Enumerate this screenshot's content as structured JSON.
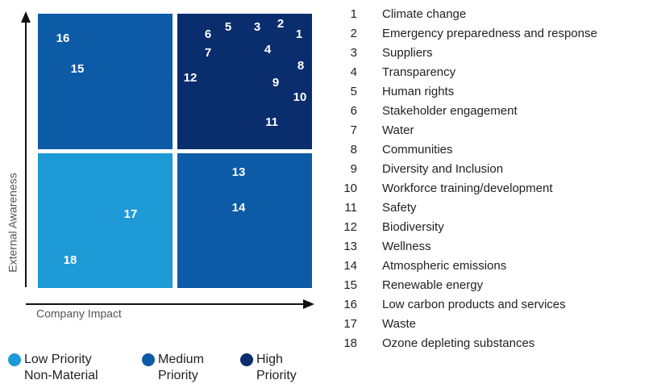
{
  "axes": {
    "y_label": "External Awareness",
    "x_label": "Company Impact"
  },
  "legend": [
    {
      "line1": "Low Priority",
      "line2": "Non-Material",
      "color": "#1e9ad6"
    },
    {
      "line1": "Medium",
      "line2": "Priority",
      "color": "#0d5aa7"
    },
    {
      "line1": "High",
      "line2": "Priority",
      "color": "#0a2d6e"
    }
  ],
  "items": [
    {
      "number": 1,
      "label": "Climate change"
    },
    {
      "number": 2,
      "label": "Emergency preparedness and response"
    },
    {
      "number": 3,
      "label": "Suppliers"
    },
    {
      "number": 4,
      "label": "Transparency"
    },
    {
      "number": 5,
      "label": "Human rights"
    },
    {
      "number": 6,
      "label": "Stakeholder engagement"
    },
    {
      "number": 7,
      "label": "Water"
    },
    {
      "number": 8,
      "label": "Communities"
    },
    {
      "number": 9,
      "label": "Diversity and Inclusion"
    },
    {
      "number": 10,
      "label": "Workforce training/development"
    },
    {
      "number": 11,
      "label": "Safety"
    },
    {
      "number": 12,
      "label": "Biodiversity"
    },
    {
      "number": 13,
      "label": "Wellness"
    },
    {
      "number": 14,
      "label": "Atmospheric emissions"
    },
    {
      "number": 15,
      "label": "Renewable energy"
    },
    {
      "number": 16,
      "label": "Low carbon products and services"
    },
    {
      "number": 17,
      "label": "Waste"
    },
    {
      "number": 18,
      "label": "Ozone depleting substances"
    }
  ]
}
